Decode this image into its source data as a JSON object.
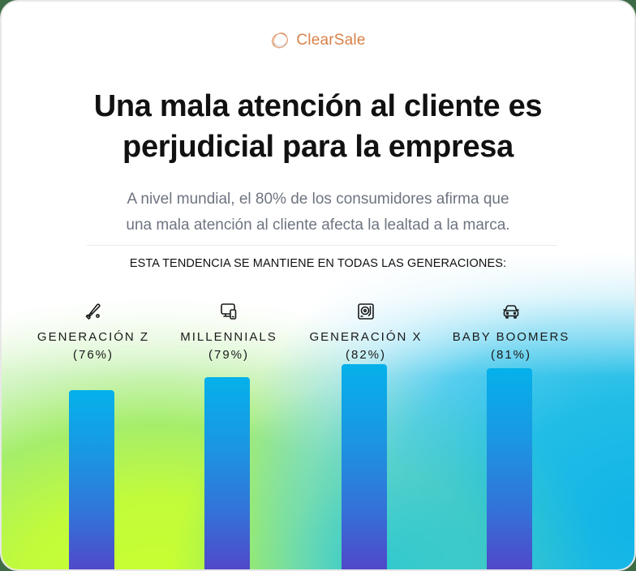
{
  "brand": {
    "name": "ClearSale",
    "icon": "clearsale-logo-icon",
    "color": "#d9824a"
  },
  "header": {
    "title_line1": "Una mala atención al cliente es",
    "title_line2": "perjudicial para la empresa",
    "subtitle_line1": "A nivel mundial, el 80% de los consumidores afirma que",
    "subtitle_line2": "una mala atención al cliente afecta la lealtad a la marca."
  },
  "section_label": "ESTA TENDENCIA SE MANTIENE EN TODAS LAS GENERACIONES:",
  "generations": [
    {
      "name": "GENERACIÓN Z",
      "percent_label": "(76%)",
      "value": 76,
      "icon": "baseball-bat-icon"
    },
    {
      "name": "MILLENNIALS",
      "percent_label": "(79%)",
      "value": 79,
      "icon": "devices-icon"
    },
    {
      "name": "GENERACIÓN X",
      "percent_label": "(82%)",
      "value": 82,
      "icon": "record-player-icon"
    },
    {
      "name": "BABY BOOMERS",
      "percent_label": "(81%)",
      "value": 81,
      "icon": "car-icon"
    }
  ],
  "colors": {
    "bar_top": "#05b1ea",
    "bar_bottom": "#5246c8",
    "bg_green": "#c8ff30",
    "bg_blue": "#0fb4e6",
    "title": "#111111",
    "subtitle": "#6e7480"
  },
  "chart_data": {
    "type": "bar",
    "title": "Una mala atención al cliente es perjudicial para la empresa",
    "subtitle": "A nivel mundial, el 80% de los consumidores afirma que una mala atención al cliente afecta la lealtad a la marca.",
    "annotation": "ESTA TENDENCIA SE MANTIENE EN TODAS LAS GENERACIONES:",
    "categories": [
      "GENERACIÓN Z",
      "MILLENNIALS",
      "GENERACIÓN X",
      "BABY BOOMERS"
    ],
    "values": [
      76,
      79,
      82,
      81
    ],
    "value_labels": [
      "(76%)",
      "(79%)",
      "(82%)",
      "(81%)"
    ],
    "xlabel": "",
    "ylabel": "",
    "unit": "%",
    "grid": false,
    "legend": "none",
    "axes_visible": false
  }
}
